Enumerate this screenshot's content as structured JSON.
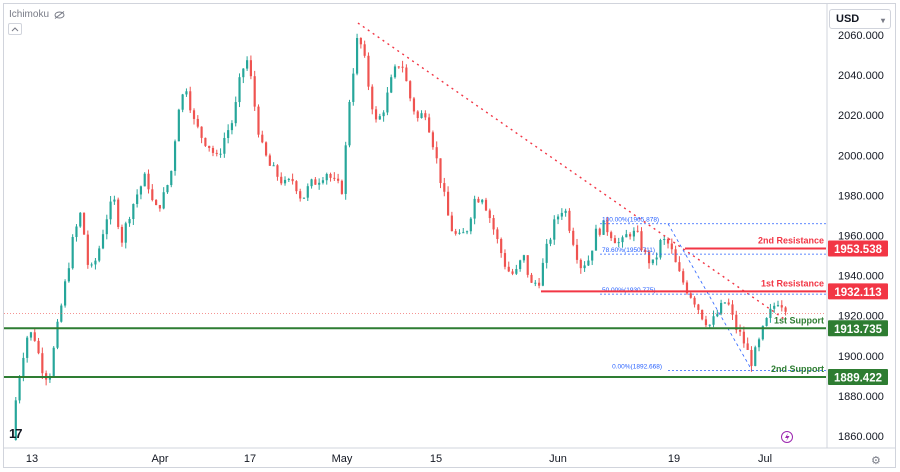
{
  "indicator": {
    "name": "Ichimoku"
  },
  "currency": {
    "label": "USD"
  },
  "colors": {
    "bull": "#26a69a",
    "bear": "#ef5350",
    "resistance": "#f23645",
    "support": "#2e7d32",
    "trend": "#f23645",
    "fib": "#2962ff"
  },
  "icons": {
    "indicator_eye": "eye-crossed-icon",
    "collapse": "chevron-up-icon",
    "logo": "tradingview-logo-icon",
    "replay": "lightning-icon",
    "settings": "gear-icon"
  },
  "chart_data": {
    "type": "candlestick",
    "ylim": [
      1853,
      2070
    ],
    "y_ticks": [
      "2060.000",
      "2040.000",
      "2020.000",
      "2000.000",
      "1980.000",
      "1960.000",
      "1940.000",
      "1920.000",
      "1900.000",
      "1880.000",
      "1860.000"
    ],
    "x_ticks": [
      "13",
      "Apr",
      "17",
      "May",
      "15",
      "Jun",
      "19",
      "Jul"
    ],
    "levels": [
      {
        "label": "2nd Resistance",
        "value": "1953.538",
        "y": 1953.538,
        "kind": "resistance"
      },
      {
        "label": "1st Resistance",
        "value": "1932.113",
        "y": 1932.113,
        "kind": "resistance"
      },
      {
        "label": "1st Support",
        "value": "1913.735",
        "y": 1913.735,
        "kind": "support"
      },
      {
        "label": "2nd Support",
        "value": "1889.422",
        "y": 1889.422,
        "kind": "support"
      }
    ],
    "fib": [
      {
        "label": "100.00%(1965.878)",
        "y": 1965.878
      },
      {
        "label": "78.60%(1950.711)",
        "y": 1950.711
      },
      {
        "label": "50.00%(1930.775)",
        "y": 1930.775
      },
      {
        "label": "0.00%(1892.668)",
        "y": 1892.668
      }
    ],
    "trend_start": {
      "bar": 0.425,
      "price": 2066
    },
    "trend_end": {
      "bar": 0.95,
      "price": 1918
    },
    "price_path": [
      [
        0,
        1858
      ],
      [
        0.004,
        1876
      ],
      [
        0.012,
        1898
      ],
      [
        0.02,
        1912
      ],
      [
        0.028,
        1909
      ],
      [
        0.036,
        1895
      ],
      [
        0.045,
        1888
      ],
      [
        0.055,
        1912
      ],
      [
        0.065,
        1935
      ],
      [
        0.075,
        1958
      ],
      [
        0.085,
        1972
      ],
      [
        0.095,
        1940
      ],
      [
        0.105,
        1950
      ],
      [
        0.115,
        1968
      ],
      [
        0.125,
        1978
      ],
      [
        0.135,
        1958
      ],
      [
        0.145,
        1972
      ],
      [
        0.155,
        1982
      ],
      [
        0.165,
        1990
      ],
      [
        0.175,
        1972
      ],
      [
        0.185,
        1978
      ],
      [
        0.195,
        1990
      ],
      [
        0.205,
        2025
      ],
      [
        0.215,
        2035
      ],
      [
        0.222,
        2018
      ],
      [
        0.232,
        2010
      ],
      [
        0.242,
        2005
      ],
      [
        0.252,
        1998
      ],
      [
        0.262,
        2010
      ],
      [
        0.272,
        2018
      ],
      [
        0.282,
        2042
      ],
      [
        0.29,
        2048
      ],
      [
        0.298,
        2025
      ],
      [
        0.306,
        2005
      ],
      [
        0.316,
        1995
      ],
      [
        0.326,
        1990
      ],
      [
        0.336,
        1985
      ],
      [
        0.346,
        1988
      ],
      [
        0.356,
        1978
      ],
      [
        0.366,
        1985
      ],
      [
        0.376,
        1988
      ],
      [
        0.386,
        1992
      ],
      [
        0.396,
        1986
      ],
      [
        0.406,
        1983
      ],
      [
        0.415,
        2030
      ],
      [
        0.425,
        2060
      ],
      [
        0.432,
        2050
      ],
      [
        0.44,
        2030
      ],
      [
        0.448,
        2015
      ],
      [
        0.458,
        2025
      ],
      [
        0.468,
        2040
      ],
      [
        0.478,
        2048
      ],
      [
        0.488,
        2030
      ],
      [
        0.498,
        2018
      ],
      [
        0.508,
        2022
      ],
      [
        0.518,
        2005
      ],
      [
        0.528,
        1985
      ],
      [
        0.538,
        1965
      ],
      [
        0.548,
        1958
      ],
      [
        0.558,
        1962
      ],
      [
        0.568,
        1978
      ],
      [
        0.578,
        1980
      ],
      [
        0.588,
        1968
      ],
      [
        0.598,
        1955
      ],
      [
        0.608,
        1943
      ],
      [
        0.618,
        1940
      ],
      [
        0.628,
        1950
      ],
      [
        0.638,
        1935
      ],
      [
        0.648,
        1938
      ],
      [
        0.658,
        1955
      ],
      [
        0.668,
        1968
      ],
      [
        0.678,
        1975
      ],
      [
        0.688,
        1960
      ],
      [
        0.698,
        1945
      ],
      [
        0.708,
        1948
      ],
      [
        0.718,
        1962
      ],
      [
        0.728,
        1965
      ],
      [
        0.738,
        1960
      ],
      [
        0.748,
        1955
      ],
      [
        0.758,
        1962
      ],
      [
        0.768,
        1960
      ],
      [
        0.778,
        1950
      ],
      [
        0.788,
        1945
      ],
      [
        0.798,
        1958
      ],
      [
        0.808,
        1955
      ],
      [
        0.818,
        1942
      ],
      [
        0.828,
        1934
      ],
      [
        0.838,
        1928
      ],
      [
        0.848,
        1920
      ],
      [
        0.858,
        1915
      ],
      [
        0.868,
        1922
      ],
      [
        0.878,
        1928
      ],
      [
        0.888,
        1915
      ],
      [
        0.898,
        1908
      ],
      [
        0.908,
        1897
      ],
      [
        0.915,
        1903
      ],
      [
        0.922,
        1912
      ],
      [
        0.93,
        1920
      ],
      [
        0.94,
        1928
      ],
      [
        0.95,
        1925
      ],
      [
        0.955,
        1924
      ]
    ]
  }
}
